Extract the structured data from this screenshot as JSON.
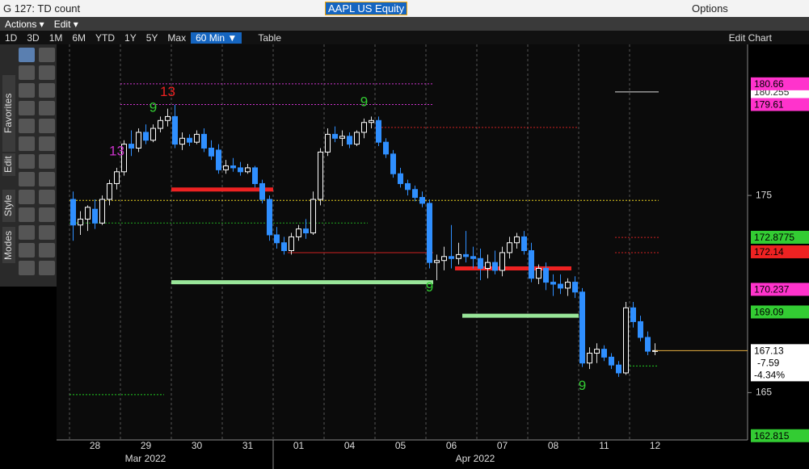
{
  "ui": {
    "title": "G 127: TD count",
    "ticker": "AAPL US Equity",
    "options": "Options",
    "menu": [
      "Actions ▾",
      "Edit ▾"
    ],
    "ranges": [
      "1D",
      "3D",
      "1M",
      "6M",
      "YTD",
      "1Y",
      "5Y",
      "Max"
    ],
    "interval": "60 Min ▼",
    "table": "Table",
    "edit_chart": "Edit Chart",
    "side_tabs": [
      "Favorites",
      "Edit",
      "Style",
      "Modes"
    ]
  },
  "chart_data": {
    "type": "candlestick",
    "categories": [
      null,
      null,
      null,
      "28",
      null,
      null,
      null,
      null,
      null,
      null,
      "29",
      null,
      null,
      null,
      null,
      null,
      null,
      "30",
      null,
      null,
      null,
      null,
      null,
      null,
      "31",
      null,
      null,
      null,
      null,
      null,
      null,
      "01",
      null,
      null,
      null,
      null,
      null,
      null,
      "04",
      null,
      null,
      null,
      null,
      null,
      null,
      "05",
      null,
      null,
      null,
      null,
      null,
      null,
      "06",
      null,
      null,
      null,
      null,
      null,
      null,
      "07",
      null,
      null,
      null,
      null,
      null,
      null,
      "08",
      null,
      null,
      null,
      null,
      null,
      null,
      "11",
      null,
      null,
      null,
      null,
      null,
      null,
      "12"
    ],
    "x_group_labels": [
      "Mar 2022",
      "Apr 2022"
    ],
    "open": [
      174.8,
      173.5,
      173.8,
      174.3,
      173.6,
      174.8,
      175.6,
      176.2,
      177.6,
      177.4,
      178.2,
      177.8,
      178.4,
      178.8,
      179.0,
      177.6,
      177.9,
      177.7,
      178.1,
      177.4,
      177.3,
      176.3,
      176.5,
      176.4,
      176.2,
      176.4,
      175.6,
      174.8,
      173.0,
      172.6,
      172.2,
      172.9,
      173.3,
      173.1,
      174.8,
      177.2,
      178.1,
      177.9,
      178.0,
      177.6,
      178.2,
      178.7,
      178.8,
      177.7,
      177.1,
      176.1,
      175.6,
      175.3,
      174.9,
      174.6,
      171.6,
      171.7,
      171.9,
      171.8,
      172.0,
      171.9,
      171.8,
      171.3,
      171.6,
      171.2,
      172.1,
      172.6,
      172.9,
      172.2,
      170.8,
      171.3,
      170.6,
      170.5,
      170.3,
      170.6,
      170.1,
      166.5,
      167.0,
      167.2,
      166.8,
      166.4,
      166.0,
      169.3,
      168.6,
      167.8,
      167.1
    ],
    "high": [
      175.2,
      174.2,
      174.5,
      174.8,
      175.0,
      175.8,
      176.4,
      177.8,
      178.3,
      178.4,
      178.6,
      178.6,
      179.0,
      179.4,
      179.6,
      178.2,
      178.1,
      178.3,
      178.4,
      177.8,
      177.6,
      176.8,
      176.9,
      176.7,
      176.6,
      176.5,
      175.8,
      175.0,
      173.4,
      172.9,
      173.1,
      173.5,
      173.8,
      175.2,
      177.4,
      178.4,
      178.5,
      178.3,
      178.2,
      178.3,
      178.9,
      179.0,
      179.0,
      177.9,
      177.3,
      176.4,
      175.8,
      175.5,
      175.2,
      174.8,
      172.0,
      172.4,
      173.5,
      172.6,
      173.2,
      172.4,
      172.3,
      172.0,
      172.2,
      172.4,
      172.9,
      173.1,
      173.2,
      172.6,
      171.5,
      171.6,
      171.0,
      171.0,
      170.8,
      170.9,
      170.3,
      167.3,
      167.5,
      167.4,
      167.0,
      166.6,
      169.6,
      169.6,
      168.9,
      168.1,
      167.5
    ],
    "low": [
      172.7,
      173.0,
      173.2,
      173.3,
      173.5,
      174.5,
      175.3,
      176.0,
      177.0,
      177.2,
      177.6,
      177.7,
      178.2,
      178.5,
      177.4,
      177.3,
      177.5,
      177.6,
      177.2,
      176.8,
      176.1,
      176.1,
      176.2,
      176.0,
      176.1,
      175.4,
      174.6,
      172.7,
      172.3,
      172.0,
      172.0,
      172.7,
      172.8,
      173.0,
      174.5,
      177.0,
      177.7,
      177.5,
      177.4,
      177.5,
      177.9,
      178.4,
      177.5,
      176.9,
      175.9,
      175.4,
      175.0,
      174.7,
      174.4,
      171.3,
      170.7,
      171.2,
      171.3,
      171.5,
      171.6,
      171.3,
      170.7,
      170.8,
      171.0,
      170.9,
      171.8,
      172.3,
      172.0,
      170.6,
      170.5,
      170.2,
      169.9,
      170.0,
      169.9,
      169.8,
      166.3,
      166.2,
      166.5,
      166.6,
      166.2,
      165.8,
      165.9,
      168.3,
      167.6,
      166.9,
      166.9
    ],
    "close": [
      173.5,
      173.8,
      174.4,
      173.6,
      174.8,
      175.6,
      176.2,
      177.6,
      177.4,
      178.2,
      177.8,
      178.4,
      178.8,
      179.0,
      177.6,
      177.9,
      177.7,
      178.1,
      177.4,
      177.0,
      176.3,
      176.5,
      176.4,
      176.2,
      176.4,
      175.6,
      174.8,
      173.0,
      172.6,
      172.2,
      172.9,
      173.3,
      173.1,
      174.8,
      177.2,
      178.1,
      177.9,
      178.0,
      177.6,
      178.2,
      178.7,
      178.8,
      177.7,
      177.1,
      176.1,
      175.6,
      175.3,
      174.9,
      174.6,
      171.6,
      171.7,
      171.9,
      171.8,
      172.0,
      171.9,
      171.8,
      171.3,
      171.6,
      171.2,
      172.1,
      172.6,
      172.9,
      172.2,
      170.8,
      171.3,
      170.6,
      170.5,
      170.3,
      170.6,
      170.1,
      166.5,
      167.0,
      167.2,
      166.8,
      166.4,
      166.0,
      169.3,
      168.6,
      167.8,
      167.1,
      167.13
    ],
    "up_color": "#ffffff",
    "down_color": "#2f8fff",
    "ylim": [
      162.6,
      182.66
    ],
    "yticks": [
      165,
      175
    ],
    "grid": true,
    "levels": [
      {
        "value": 180.66,
        "from": 7,
        "to": 49,
        "color": "#cc33cc",
        "style": "dotted"
      },
      {
        "value": 179.61,
        "from": 7,
        "to": 49,
        "color": "#cc33cc",
        "style": "dotted"
      },
      {
        "value": 178.45,
        "from": 42,
        "to": 69,
        "color": "#cc2222",
        "style": "dotted"
      },
      {
        "value": 174.75,
        "from": 0,
        "to": 80,
        "color": "#e8d020",
        "style": "dotted"
      },
      {
        "value": 173.6,
        "from": 0,
        "to": 40,
        "color": "#22aa22",
        "style": "dotted"
      },
      {
        "value": 175.3,
        "from": 14,
        "to": 27,
        "color": "#ee2222",
        "style": "thick"
      },
      {
        "value": 170.6,
        "from": 14,
        "to": 49,
        "color": "#99e699",
        "style": "thick"
      },
      {
        "value": 172.1,
        "from": 30,
        "to": 49,
        "color": "#cc2222",
        "style": "thin"
      },
      {
        "value": 171.3,
        "from": 53,
        "to": 68,
        "color": "#ee2222",
        "style": "thick"
      },
      {
        "value": 168.9,
        "from": 54,
        "to": 69,
        "color": "#99e699",
        "style": "thick"
      },
      {
        "value": 172.87,
        "from": 75,
        "to": 80,
        "color": "#cc2222",
        "style": "dotted"
      },
      {
        "value": 172.1,
        "from": 75,
        "to": 80,
        "color": "#cc2222",
        "style": "dotted"
      },
      {
        "value": 180.25,
        "from": 75,
        "to": 80,
        "color": "#dddddd",
        "style": "thin"
      },
      {
        "value": 166.35,
        "from": 77,
        "to": 80,
        "color": "#22cc22",
        "style": "dotted"
      },
      {
        "value": 164.9,
        "from": 0,
        "to": 12,
        "color": "#22cc22",
        "style": "dotted"
      }
    ],
    "annotations": [
      {
        "label": 13,
        "candle": 6,
        "side": "above",
        "color": "#cc33cc"
      },
      {
        "label": 9,
        "candle": 11,
        "side": "above",
        "color": "#33cc33"
      },
      {
        "label": 13,
        "candle": 13,
        "side": "above",
        "color": "#ee2222"
      },
      {
        "label": 9,
        "candle": 40,
        "side": "above",
        "color": "#33cc33"
      },
      {
        "label": 9,
        "candle": 49,
        "side": "below",
        "color": "#33cc33"
      },
      {
        "label": 9,
        "candle": 70,
        "side": "below",
        "color": "#33cc33"
      }
    ],
    "price_labels": [
      {
        "value": 180.255,
        "color": "#ffffff"
      },
      {
        "value": 180.66,
        "color": "#ff33cc"
      },
      {
        "value": 179.61,
        "color": "#ff33cc"
      },
      {
        "value": 172.8775,
        "color": "#33cc33"
      },
      {
        "value": 172.14,
        "color": "#ee2222"
      },
      {
        "value": 170.237,
        "color": "#ff33cc"
      },
      {
        "value": 169.09,
        "color": "#33cc33"
      },
      {
        "value": 162.815,
        "color": "#33cc33"
      }
    ],
    "last": {
      "value": 167.13,
      "change": -7.59,
      "change_pct": {
        "value": -4.34,
        "label": "-4.34%"
      }
    }
  }
}
